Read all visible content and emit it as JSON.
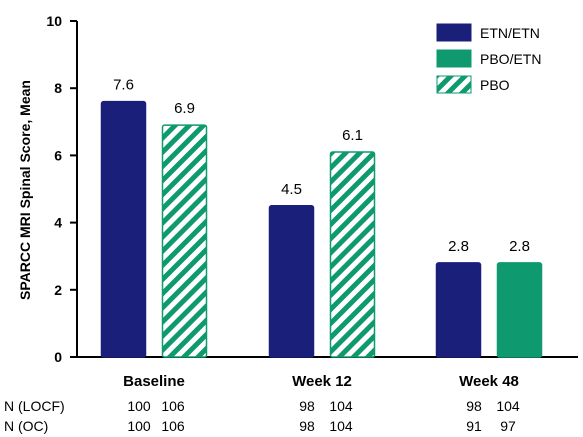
{
  "chart_data": {
    "type": "bar",
    "ylabel": "SPARCC MRI Spinal Score, Mean",
    "ylim": [
      0,
      10
    ],
    "yticks": [
      0,
      2,
      4,
      6,
      8,
      10
    ],
    "categories": [
      "Baseline",
      "Week 12",
      "Week 48"
    ],
    "series": [
      {
        "name": "ETN/ETN",
        "values": [
          7.6,
          4.5,
          2.8
        ],
        "color": "#1a1f7a",
        "fill": "solid"
      },
      {
        "name": "PBO/ETN",
        "values": [
          null,
          null,
          2.8
        ],
        "color": "#0e9a6e",
        "fill": "solid"
      },
      {
        "name": "PBO",
        "values": [
          6.9,
          6.1,
          null
        ],
        "color": "#0e9a6e",
        "fill": "hatched"
      }
    ],
    "legend_position": "top-right",
    "grid": false
  },
  "n_rows": [
    {
      "label": "N (LOCF)",
      "values": [
        [
          "100",
          "106"
        ],
        [
          "98",
          "104"
        ],
        [
          "98",
          "104"
        ]
      ]
    },
    {
      "label": "N (OC)",
      "values": [
        [
          "100",
          "106"
        ],
        [
          "98",
          "104"
        ],
        [
          "91",
          "97"
        ]
      ]
    }
  ]
}
